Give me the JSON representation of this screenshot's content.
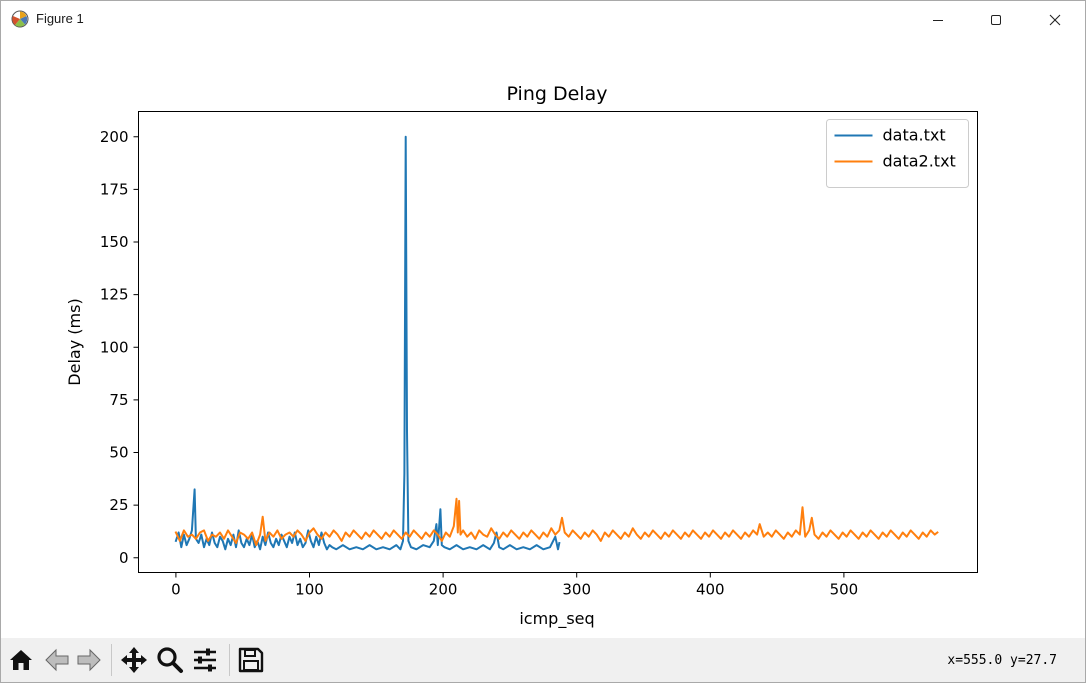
{
  "window": {
    "title": "Figure 1",
    "controls": [
      "minimize",
      "maximize",
      "close"
    ]
  },
  "toolbar": {
    "buttons": [
      {
        "name": "home-icon",
        "action": "Reset original view"
      },
      {
        "name": "back-icon",
        "action": "Back to previous view"
      },
      {
        "name": "forward-icon",
        "action": "Forward to next view"
      },
      {
        "name": "pan-icon",
        "action": "Pan"
      },
      {
        "name": "zoom-icon",
        "action": "Zoom to rectangle"
      },
      {
        "name": "configure-subplots-icon",
        "action": "Configure subplots"
      },
      {
        "name": "save-icon",
        "action": "Save the figure"
      }
    ],
    "coords": "x=555.0 y=27.7"
  },
  "chart_data": {
    "type": "line",
    "title": "Ping Delay",
    "xlabel": "icmp_seq",
    "ylabel": "Delay (ms)",
    "xlim": [
      -28,
      600
    ],
    "ylim": [
      -7,
      212
    ],
    "xticks": [
      0,
      100,
      200,
      300,
      400,
      500
    ],
    "yticks": [
      0,
      25,
      50,
      75,
      100,
      125,
      150,
      175,
      200
    ],
    "grid": false,
    "legend_position": "top-right",
    "series": [
      {
        "name": "data.txt",
        "color": "#1f77b4",
        "points": [
          [
            0,
            8
          ],
          [
            2,
            12
          ],
          [
            4,
            5
          ],
          [
            6,
            11
          ],
          [
            8,
            6
          ],
          [
            10,
            9
          ],
          [
            12,
            13
          ],
          [
            14,
            32.5
          ],
          [
            15,
            9
          ],
          [
            17,
            7
          ],
          [
            19,
            11
          ],
          [
            21,
            5
          ],
          [
            23,
            9
          ],
          [
            25,
            6
          ],
          [
            27,
            12
          ],
          [
            29,
            7
          ],
          [
            31,
            5
          ],
          [
            33,
            10
          ],
          [
            35,
            8
          ],
          [
            37,
            4
          ],
          [
            39,
            9
          ],
          [
            41,
            6
          ],
          [
            43,
            11
          ],
          [
            45,
            5
          ],
          [
            47,
            13
          ],
          [
            49,
            7
          ],
          [
            51,
            5
          ],
          [
            53,
            9
          ],
          [
            55,
            6
          ],
          [
            57,
            11
          ],
          [
            59,
            5
          ],
          [
            61,
            8
          ],
          [
            63,
            4
          ],
          [
            65,
            10
          ],
          [
            67,
            6
          ],
          [
            69,
            12
          ],
          [
            71,
            7
          ],
          [
            73,
            5
          ],
          [
            75,
            9
          ],
          [
            77,
            6
          ],
          [
            79,
            11
          ],
          [
            81,
            8
          ],
          [
            83,
            5
          ],
          [
            85,
            10
          ],
          [
            87,
            7
          ],
          [
            89,
            12
          ],
          [
            91,
            6
          ],
          [
            93,
            9
          ],
          [
            95,
            5
          ],
          [
            97,
            7
          ],
          [
            99,
            13
          ],
          [
            101,
            8
          ],
          [
            103,
            5
          ],
          [
            105,
            10
          ],
          [
            107,
            6
          ],
          [
            109,
            12
          ],
          [
            111,
            7
          ],
          [
            113,
            4
          ],
          [
            115,
            6
          ],
          [
            117,
            5
          ],
          [
            120,
            4
          ],
          [
            125,
            6
          ],
          [
            130,
            4
          ],
          [
            135,
            5
          ],
          [
            140,
            4
          ],
          [
            145,
            6
          ],
          [
            150,
            4
          ],
          [
            155,
            5
          ],
          [
            160,
            4
          ],
          [
            165,
            6
          ],
          [
            168,
            4
          ],
          [
            170,
            8
          ],
          [
            171,
            40
          ],
          [
            172,
            200
          ],
          [
            173,
            60
          ],
          [
            174,
            8
          ],
          [
            176,
            5
          ],
          [
            180,
            4
          ],
          [
            185,
            6
          ],
          [
            190,
            5
          ],
          [
            193,
            8
          ],
          [
            195,
            16
          ],
          [
            196,
            6
          ],
          [
            198,
            23
          ],
          [
            199,
            6
          ],
          [
            201,
            5
          ],
          [
            205,
            4
          ],
          [
            210,
            6
          ],
          [
            215,
            4
          ],
          [
            220,
            5
          ],
          [
            225,
            4
          ],
          [
            230,
            6
          ],
          [
            235,
            4
          ],
          [
            238,
            7
          ],
          [
            240,
            12
          ],
          [
            242,
            5
          ],
          [
            245,
            4
          ],
          [
            250,
            6
          ],
          [
            255,
            4
          ],
          [
            260,
            5
          ],
          [
            265,
            4
          ],
          [
            270,
            6
          ],
          [
            275,
            4
          ],
          [
            280,
            5
          ],
          [
            284,
            10
          ],
          [
            286,
            4
          ],
          [
            287,
            7
          ]
        ]
      },
      {
        "name": "data2.txt",
        "color": "#ff7f0e",
        "points": [
          [
            0,
            12
          ],
          [
            3,
            8
          ],
          [
            6,
            13
          ],
          [
            9,
            10
          ],
          [
            12,
            11
          ],
          [
            15,
            9
          ],
          [
            18,
            12
          ],
          [
            21,
            13
          ],
          [
            24,
            8
          ],
          [
            27,
            11
          ],
          [
            30,
            10
          ],
          [
            33,
            12
          ],
          [
            36,
            9
          ],
          [
            39,
            13
          ],
          [
            42,
            10
          ],
          [
            45,
            7
          ],
          [
            48,
            12
          ],
          [
            51,
            11
          ],
          [
            54,
            9
          ],
          [
            57,
            12
          ],
          [
            60,
            6
          ],
          [
            63,
            11
          ],
          [
            65,
            19.5
          ],
          [
            67,
            8
          ],
          [
            70,
            12
          ],
          [
            73,
            10
          ],
          [
            76,
            13
          ],
          [
            79,
            9
          ],
          [
            82,
            11
          ],
          [
            85,
            12
          ],
          [
            88,
            10
          ],
          [
            91,
            13
          ],
          [
            94,
            11
          ],
          [
            97,
            8
          ],
          [
            100,
            12
          ],
          [
            103,
            14
          ],
          [
            106,
            11
          ],
          [
            109,
            9
          ],
          [
            112,
            12
          ],
          [
            115,
            10
          ],
          [
            118,
            13
          ],
          [
            121,
            11
          ],
          [
            124,
            8
          ],
          [
            127,
            12
          ],
          [
            130,
            10
          ],
          [
            133,
            13
          ],
          [
            136,
            11
          ],
          [
            139,
            9
          ],
          [
            142,
            12
          ],
          [
            145,
            10
          ],
          [
            148,
            13
          ],
          [
            151,
            11
          ],
          [
            154,
            9
          ],
          [
            157,
            12
          ],
          [
            160,
            10
          ],
          [
            163,
            13
          ],
          [
            166,
            11
          ],
          [
            169,
            9
          ],
          [
            172,
            12
          ],
          [
            175,
            10
          ],
          [
            178,
            13
          ],
          [
            181,
            11
          ],
          [
            184,
            9
          ],
          [
            187,
            12
          ],
          [
            190,
            10
          ],
          [
            193,
            13
          ],
          [
            196,
            11
          ],
          [
            199,
            8
          ],
          [
            202,
            12
          ],
          [
            205,
            10
          ],
          [
            208,
            15
          ],
          [
            210,
            28
          ],
          [
            211,
            12
          ],
          [
            212,
            27
          ],
          [
            213,
            11
          ],
          [
            215,
            13
          ],
          [
            218,
            10
          ],
          [
            221,
            12
          ],
          [
            224,
            9
          ],
          [
            227,
            13
          ],
          [
            230,
            11
          ],
          [
            233,
            10
          ],
          [
            236,
            14
          ],
          [
            239,
            11
          ],
          [
            242,
            9
          ],
          [
            245,
            12
          ],
          [
            248,
            10
          ],
          [
            251,
            13
          ],
          [
            254,
            11
          ],
          [
            257,
            9
          ],
          [
            260,
            12
          ],
          [
            263,
            10
          ],
          [
            266,
            13
          ],
          [
            269,
            11
          ],
          [
            272,
            9
          ],
          [
            275,
            12
          ],
          [
            278,
            10
          ],
          [
            281,
            14
          ],
          [
            284,
            11
          ],
          [
            287,
            13
          ],
          [
            289,
            19
          ],
          [
            291,
            12
          ],
          [
            294,
            10
          ],
          [
            297,
            13
          ],
          [
            300,
            11
          ],
          [
            303,
            9
          ],
          [
            306,
            12
          ],
          [
            309,
            10
          ],
          [
            312,
            13
          ],
          [
            315,
            11
          ],
          [
            318,
            8
          ],
          [
            321,
            12
          ],
          [
            324,
            10
          ],
          [
            327,
            13
          ],
          [
            330,
            11
          ],
          [
            333,
            9
          ],
          [
            336,
            12
          ],
          [
            339,
            10
          ],
          [
            342,
            14
          ],
          [
            345,
            11
          ],
          [
            348,
            9
          ],
          [
            351,
            12
          ],
          [
            354,
            10
          ],
          [
            357,
            13
          ],
          [
            360,
            11
          ],
          [
            363,
            9
          ],
          [
            366,
            12
          ],
          [
            369,
            10
          ],
          [
            372,
            13
          ],
          [
            375,
            11
          ],
          [
            378,
            9
          ],
          [
            381,
            12
          ],
          [
            384,
            10
          ],
          [
            387,
            13
          ],
          [
            390,
            11
          ],
          [
            393,
            9
          ],
          [
            396,
            12
          ],
          [
            399,
            10
          ],
          [
            402,
            13
          ],
          [
            405,
            11
          ],
          [
            408,
            9
          ],
          [
            411,
            12
          ],
          [
            414,
            10
          ],
          [
            417,
            13
          ],
          [
            420,
            11
          ],
          [
            423,
            9
          ],
          [
            426,
            12
          ],
          [
            429,
            10
          ],
          [
            432,
            13
          ],
          [
            435,
            11
          ],
          [
            437,
            16
          ],
          [
            440,
            10
          ],
          [
            443,
            12
          ],
          [
            446,
            10
          ],
          [
            449,
            13
          ],
          [
            452,
            11
          ],
          [
            455,
            9
          ],
          [
            458,
            12
          ],
          [
            461,
            10
          ],
          [
            464,
            13
          ],
          [
            467,
            11
          ],
          [
            469,
            24
          ],
          [
            471,
            10
          ],
          [
            474,
            13
          ],
          [
            476,
            19
          ],
          [
            478,
            11
          ],
          [
            481,
            9
          ],
          [
            484,
            12
          ],
          [
            487,
            10
          ],
          [
            490,
            13
          ],
          [
            493,
            11
          ],
          [
            496,
            9
          ],
          [
            499,
            12
          ],
          [
            502,
            10
          ],
          [
            505,
            13
          ],
          [
            508,
            11
          ],
          [
            511,
            9
          ],
          [
            514,
            12
          ],
          [
            517,
            10
          ],
          [
            520,
            13
          ],
          [
            523,
            11
          ],
          [
            526,
            9
          ],
          [
            529,
            12
          ],
          [
            532,
            10
          ],
          [
            535,
            13
          ],
          [
            538,
            11
          ],
          [
            541,
            9
          ],
          [
            544,
            12
          ],
          [
            547,
            10
          ],
          [
            550,
            13
          ],
          [
            553,
            11
          ],
          [
            556,
            9
          ],
          [
            559,
            12
          ],
          [
            562,
            10
          ],
          [
            565,
            13
          ],
          [
            568,
            11
          ],
          [
            570,
            12
          ]
        ]
      }
    ]
  }
}
